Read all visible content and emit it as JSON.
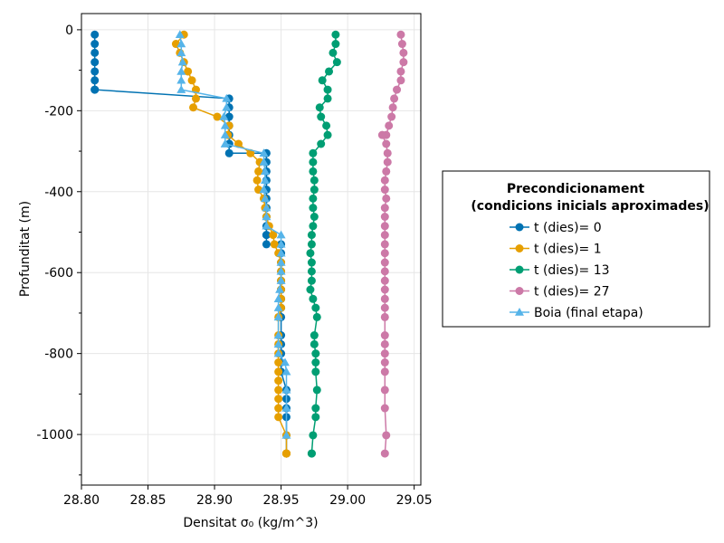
{
  "chart_data": {
    "type": "line",
    "xlabel": "Densitat σ₀ (kg/m^3)",
    "ylabel": "Profunditat (m)",
    "xlim": [
      28.8,
      29.055
    ],
    "ylim": [
      -1125,
      40
    ],
    "xticks": [
      28.8,
      28.85,
      28.9,
      28.95,
      29.0,
      29.05
    ],
    "xtick_labels": [
      "28.80",
      "28.85",
      "28.90",
      "28.95",
      "29.00",
      "29.05"
    ],
    "yticks": [
      0,
      -200,
      -400,
      -600,
      -800,
      -1000
    ],
    "ytick_labels": [
      "0",
      "-200",
      "-400",
      "-600",
      "-800",
      "-1000"
    ],
    "grid": true,
    "legend": {
      "title_lines": [
        "Precondicionament",
        "(condicions inicials aproximades)"
      ],
      "placement": "right"
    },
    "series": [
      {
        "name": "t (dies)= 0",
        "color": "#0072b2",
        "marker": "circle",
        "x": [
          28.81,
          28.81,
          28.81,
          28.81,
          28.81,
          28.81,
          28.81,
          28.81,
          28.911,
          28.911,
          28.911,
          28.911,
          28.911,
          28.911,
          28.911,
          28.911,
          28.939,
          28.939,
          28.939,
          28.939,
          28.939,
          28.939,
          28.939,
          28.939,
          28.939,
          28.939,
          28.939,
          28.939,
          28.95,
          28.95,
          28.95,
          28.95,
          28.95,
          28.95,
          28.95,
          28.95,
          28.95,
          28.95,
          28.95,
          28.95,
          28.95,
          28.95,
          28.954,
          28.954,
          28.954,
          28.954,
          28.954,
          28.954
        ],
        "y": [
          -12,
          -35,
          -57,
          -80,
          -103,
          -125,
          -148,
          -148,
          -170,
          -192,
          -215,
          -237,
          -260,
          -282,
          -282,
          -305,
          -305,
          -327,
          -350,
          -372,
          -395,
          -417,
          -440,
          -462,
          -485,
          -507,
          -507,
          -530,
          -530,
          -552,
          -575,
          -597,
          -620,
          -642,
          -665,
          -687,
          -710,
          -755,
          -777,
          -800,
          -822,
          -845,
          -890,
          -912,
          -935,
          -957,
          -1002,
          -1047
        ]
      },
      {
        "name": "t (dies)= 1",
        "color": "#e69f00",
        "marker": "circle",
        "x": [
          28.877,
          28.871,
          28.874,
          28.877,
          28.88,
          28.883,
          28.886,
          28.886,
          28.884,
          28.902,
          28.911,
          28.91,
          28.918,
          28.927,
          28.934,
          28.933,
          28.932,
          28.933,
          28.937,
          28.938,
          28.939,
          28.941,
          28.944,
          28.945,
          28.948,
          28.95,
          28.95,
          28.95,
          28.95,
          28.95,
          28.95,
          28.948,
          28.948,
          28.948,
          28.948,
          28.948,
          28.948,
          28.948,
          28.948,
          28.948,
          28.948,
          28.948,
          28.954,
          28.954,
          28.954,
          28.954,
          28.954,
          28.954
        ],
        "y": [
          -12,
          -35,
          -57,
          -80,
          -103,
          -125,
          -148,
          -170,
          -192,
          -215,
          -237,
          -260,
          -282,
          -305,
          -327,
          -350,
          -372,
          -395,
          -417,
          -440,
          -462,
          -485,
          -507,
          -530,
          -552,
          -575,
          -597,
          -620,
          -642,
          -665,
          -687,
          -710,
          -755,
          -777,
          -800,
          -822,
          -845,
          -867,
          -890,
          -912,
          -935,
          -957,
          -1002,
          -1047,
          -1047,
          -1047,
          -1047,
          -1047
        ]
      },
      {
        "name": "t (dies)= 13",
        "color": "#009e73",
        "marker": "circle",
        "x": [
          28.991,
          28.991,
          28.989,
          28.992,
          28.986,
          28.981,
          28.985,
          28.985,
          28.979,
          28.98,
          28.984,
          28.985,
          28.98,
          28.974,
          28.974,
          28.974,
          28.975,
          28.975,
          28.974,
          28.974,
          28.975,
          28.974,
          28.973,
          28.973,
          28.972,
          28.973,
          28.973,
          28.973,
          28.972,
          28.974,
          28.976,
          28.977,
          28.975,
          28.975,
          28.976,
          28.976,
          28.976,
          28.977,
          28.976,
          28.976,
          28.974,
          28.973,
          28.973
        ],
        "y": [
          -12,
          -35,
          -57,
          -80,
          -103,
          -125,
          -148,
          -170,
          -192,
          -215,
          -237,
          -260,
          -282,
          -305,
          -327,
          -350,
          -372,
          -395,
          -417,
          -440,
          -462,
          -485,
          -507,
          -530,
          -552,
          -575,
          -597,
          -620,
          -642,
          -665,
          -687,
          -710,
          -755,
          -777,
          -800,
          -822,
          -845,
          -890,
          -935,
          -957,
          -1002,
          -1047,
          -1047
        ]
      },
      {
        "name": "t (dies)= 27",
        "color": "#cc79a7",
        "marker": "circle",
        "x": [
          29.04,
          29.041,
          29.042,
          29.042,
          29.04,
          29.04,
          29.037,
          29.035,
          29.034,
          29.033,
          29.031,
          29.029,
          29.026,
          29.029,
          29.03,
          29.03,
          29.029,
          29.028,
          29.028,
          29.029,
          29.028,
          29.028,
          29.028,
          29.028,
          29.028,
          29.028,
          29.028,
          29.028,
          29.028,
          29.028,
          29.028,
          29.028,
          29.028,
          29.028,
          29.028,
          29.028,
          29.028,
          29.028,
          29.028,
          29.028,
          29.029,
          29.028
        ],
        "y": [
          -12,
          -35,
          -57,
          -80,
          -103,
          -125,
          -148,
          -170,
          -192,
          -215,
          -237,
          -260,
          -260,
          -282,
          -305,
          -327,
          -350,
          -372,
          -395,
          -417,
          -440,
          -462,
          -485,
          -507,
          -530,
          -552,
          -575,
          -597,
          -620,
          -642,
          -665,
          -687,
          -710,
          -755,
          -777,
          -800,
          -822,
          -845,
          -890,
          -935,
          -1002,
          -1047
        ]
      },
      {
        "name": "Boia (final etapa)",
        "color": "#56b4e9",
        "marker": "triangle",
        "x": [
          28.874,
          28.875,
          28.875,
          28.876,
          28.875,
          28.875,
          28.875,
          28.909,
          28.909,
          28.907,
          28.908,
          28.908,
          28.908,
          28.908,
          28.937,
          28.937,
          28.938,
          28.938,
          28.937,
          28.938,
          28.939,
          28.939,
          28.939,
          28.95,
          28.95,
          28.95,
          28.95,
          28.95,
          28.95,
          28.949,
          28.948,
          28.948,
          28.948,
          28.948,
          28.948,
          28.948,
          28.953,
          28.954,
          28.954,
          28.954,
          28.954
        ],
        "y": [
          -12,
          -35,
          -57,
          -80,
          -103,
          -125,
          -148,
          -170,
          -192,
          -215,
          -237,
          -260,
          -282,
          -282,
          -305,
          -327,
          -350,
          -372,
          -395,
          -417,
          -440,
          -462,
          -485,
          -507,
          -530,
          -552,
          -575,
          -597,
          -620,
          -642,
          -665,
          -687,
          -710,
          -755,
          -777,
          -800,
          -822,
          -845,
          -890,
          -935,
          -1002
        ]
      }
    ]
  }
}
